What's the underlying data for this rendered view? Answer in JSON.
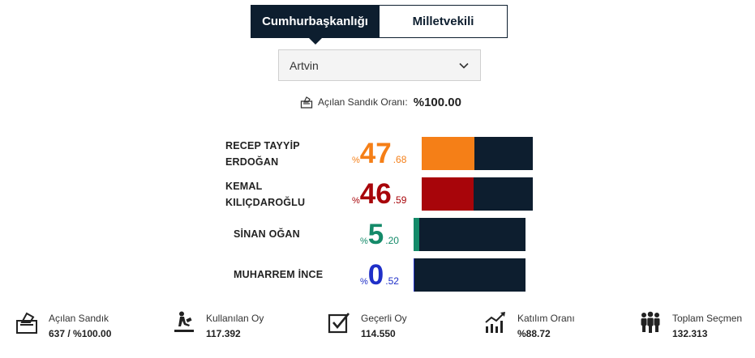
{
  "tabs": [
    {
      "label": "Cumhurbaşkanlığı",
      "active": true
    },
    {
      "label": "Milletvekili",
      "active": false
    }
  ],
  "province_select": {
    "value": "Artvin",
    "icon": "chevron-down-icon"
  },
  "ballot_ratio": {
    "label": "Açılan Sandık Oranı:",
    "value": "%100.00",
    "icon": "ballot-box-icon"
  },
  "candidates": [
    {
      "name_line1": "RECEP TAYYİP",
      "name_line2": "ERDOĞAN",
      "pct_symbol": "%",
      "pct_int": "47",
      "pct_dec": ".68",
      "share": 0.4768,
      "color": "#f57f17"
    },
    {
      "name_line1": "KEMAL",
      "name_line2": "KILIÇDAROĞLU",
      "pct_symbol": "%",
      "pct_int": "46",
      "pct_dec": ".59",
      "share": 0.4659,
      "color": "#a8050a"
    },
    {
      "name_line1": "SİNAN OĞAN",
      "name_line2": "",
      "pct_symbol": "%",
      "pct_int": "5",
      "pct_dec": ".20",
      "share": 0.052,
      "color": "#148a69"
    },
    {
      "name_line1": "MUHARREM İNCE",
      "name_line2": "",
      "pct_symbol": "%",
      "pct_int": "0",
      "pct_dec": ".52",
      "share": 0.0052,
      "color": "#1f2fc8"
    }
  ],
  "stats": [
    {
      "label": "Açılan Sandık",
      "value": "637 / %100.00",
      "icon": "ballot-box-icon"
    },
    {
      "label": "Kullanılan Oy",
      "value": "117.392",
      "icon": "vote-casting-icon"
    },
    {
      "label": "Geçerli Oy",
      "value": "114.550",
      "icon": "checkbox-icon"
    },
    {
      "label": "Katılım Oranı",
      "value": "%88.72",
      "icon": "trend-chart-icon"
    },
    {
      "label": "Toplam Seçmen",
      "value": "132.313",
      "icon": "people-icon"
    }
  ],
  "colors": {
    "dark": "#0d1e2f"
  }
}
